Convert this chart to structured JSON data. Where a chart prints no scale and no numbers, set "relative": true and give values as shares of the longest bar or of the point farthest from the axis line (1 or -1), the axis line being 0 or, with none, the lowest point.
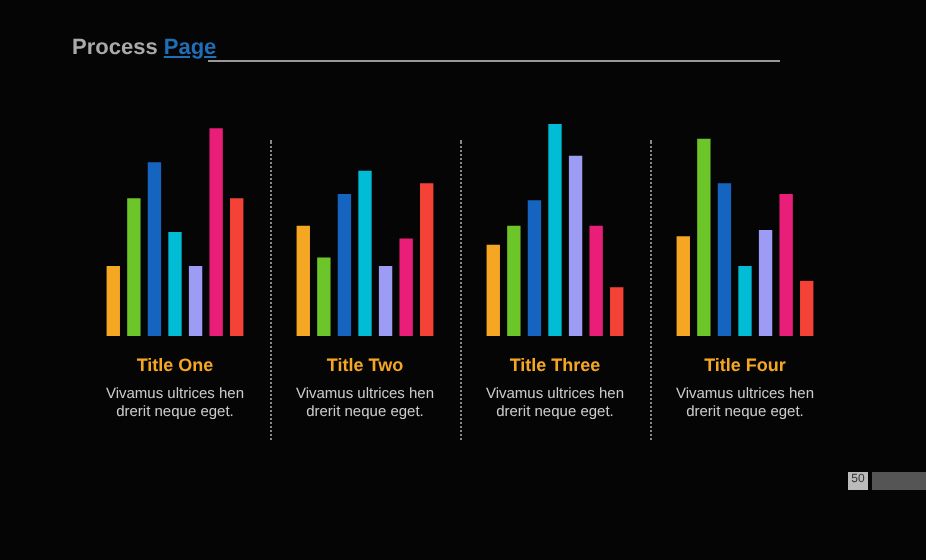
{
  "chart_data": {
    "type": "bar",
    "title": "Process Page",
    "relative": true,
    "categories": [
      "Title One",
      "Title Two",
      "Title Three",
      "Title Four"
    ],
    "series": [
      {
        "color": "#f5a623",
        "values": [
          0.33,
          0.52,
          0.43,
          0.47
        ]
      },
      {
        "color": "#6cc62a",
        "values": [
          0.65,
          0.37,
          0.52,
          0.93
        ]
      },
      {
        "color": "#1565c0",
        "values": [
          0.82,
          0.67,
          0.64,
          0.72
        ]
      },
      {
        "color": "#00bcd4",
        "values": [
          0.49,
          0.78,
          1,
          0.33
        ]
      },
      {
        "color": "#9c9cf5",
        "values": [
          0.33,
          0.33,
          0.85,
          0.5
        ]
      },
      {
        "color": "#e91e78",
        "values": [
          0.98,
          0.46,
          0.52,
          0.67
        ]
      },
      {
        "color": "#f44336",
        "values": [
          0.65,
          0.72,
          0.23,
          0.26
        ]
      }
    ],
    "annotations": [
      "Vivamus ultrices hen drerit neque eget.",
      "Vivamus ultrices hen drerit neque eget.",
      "Vivamus ultrices hen drerit neque eget.",
      "Vivamus ultrices hen drerit neque eget.",
      "50"
    ],
    "legend": false,
    "grid": false
  }
}
